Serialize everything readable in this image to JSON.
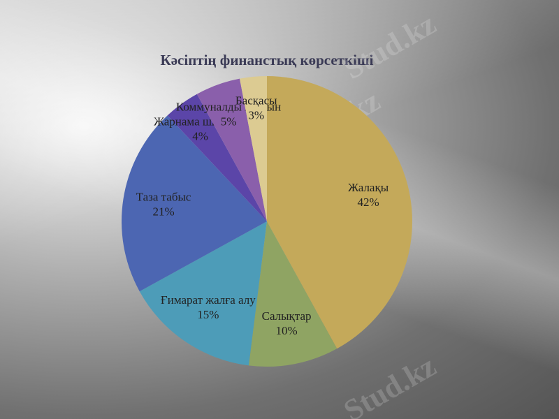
{
  "chart_data": {
    "type": "pie",
    "title": "Кәсіптің финанстық көрсеткіші",
    "categories": [
      "Жалақы",
      "Салықтар",
      "Ғимарат жалға алу",
      "Таза табыс",
      "Жарнама шығыны",
      "Коммуналды шығын",
      "Басқасы"
    ],
    "values": [
      42,
      10,
      15,
      21,
      4,
      5,
      3
    ],
    "value_labels": [
      "42%",
      "10%",
      "15%",
      "21%",
      "4%",
      "5%",
      "3%"
    ],
    "colors": [
      "#c4a95a",
      "#8fa463",
      "#4d9cb8",
      "#4c66b2",
      "#5b45a8",
      "#8a5fab",
      "#dccb92"
    ],
    "watermark": "Stud.kz"
  }
}
